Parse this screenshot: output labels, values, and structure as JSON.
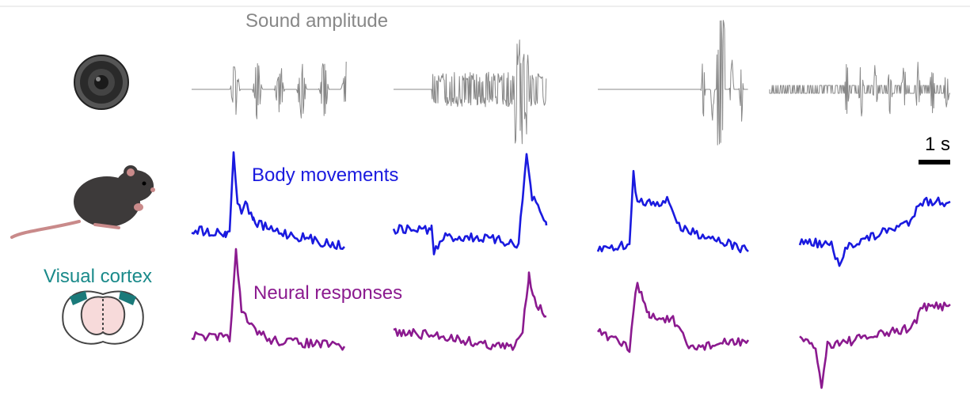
{
  "labels": {
    "sound": "Sound amplitude",
    "body": "Body movements",
    "neural": "Neural responses",
    "cortex": "Visual cortex",
    "scale": "1 s"
  }
}
